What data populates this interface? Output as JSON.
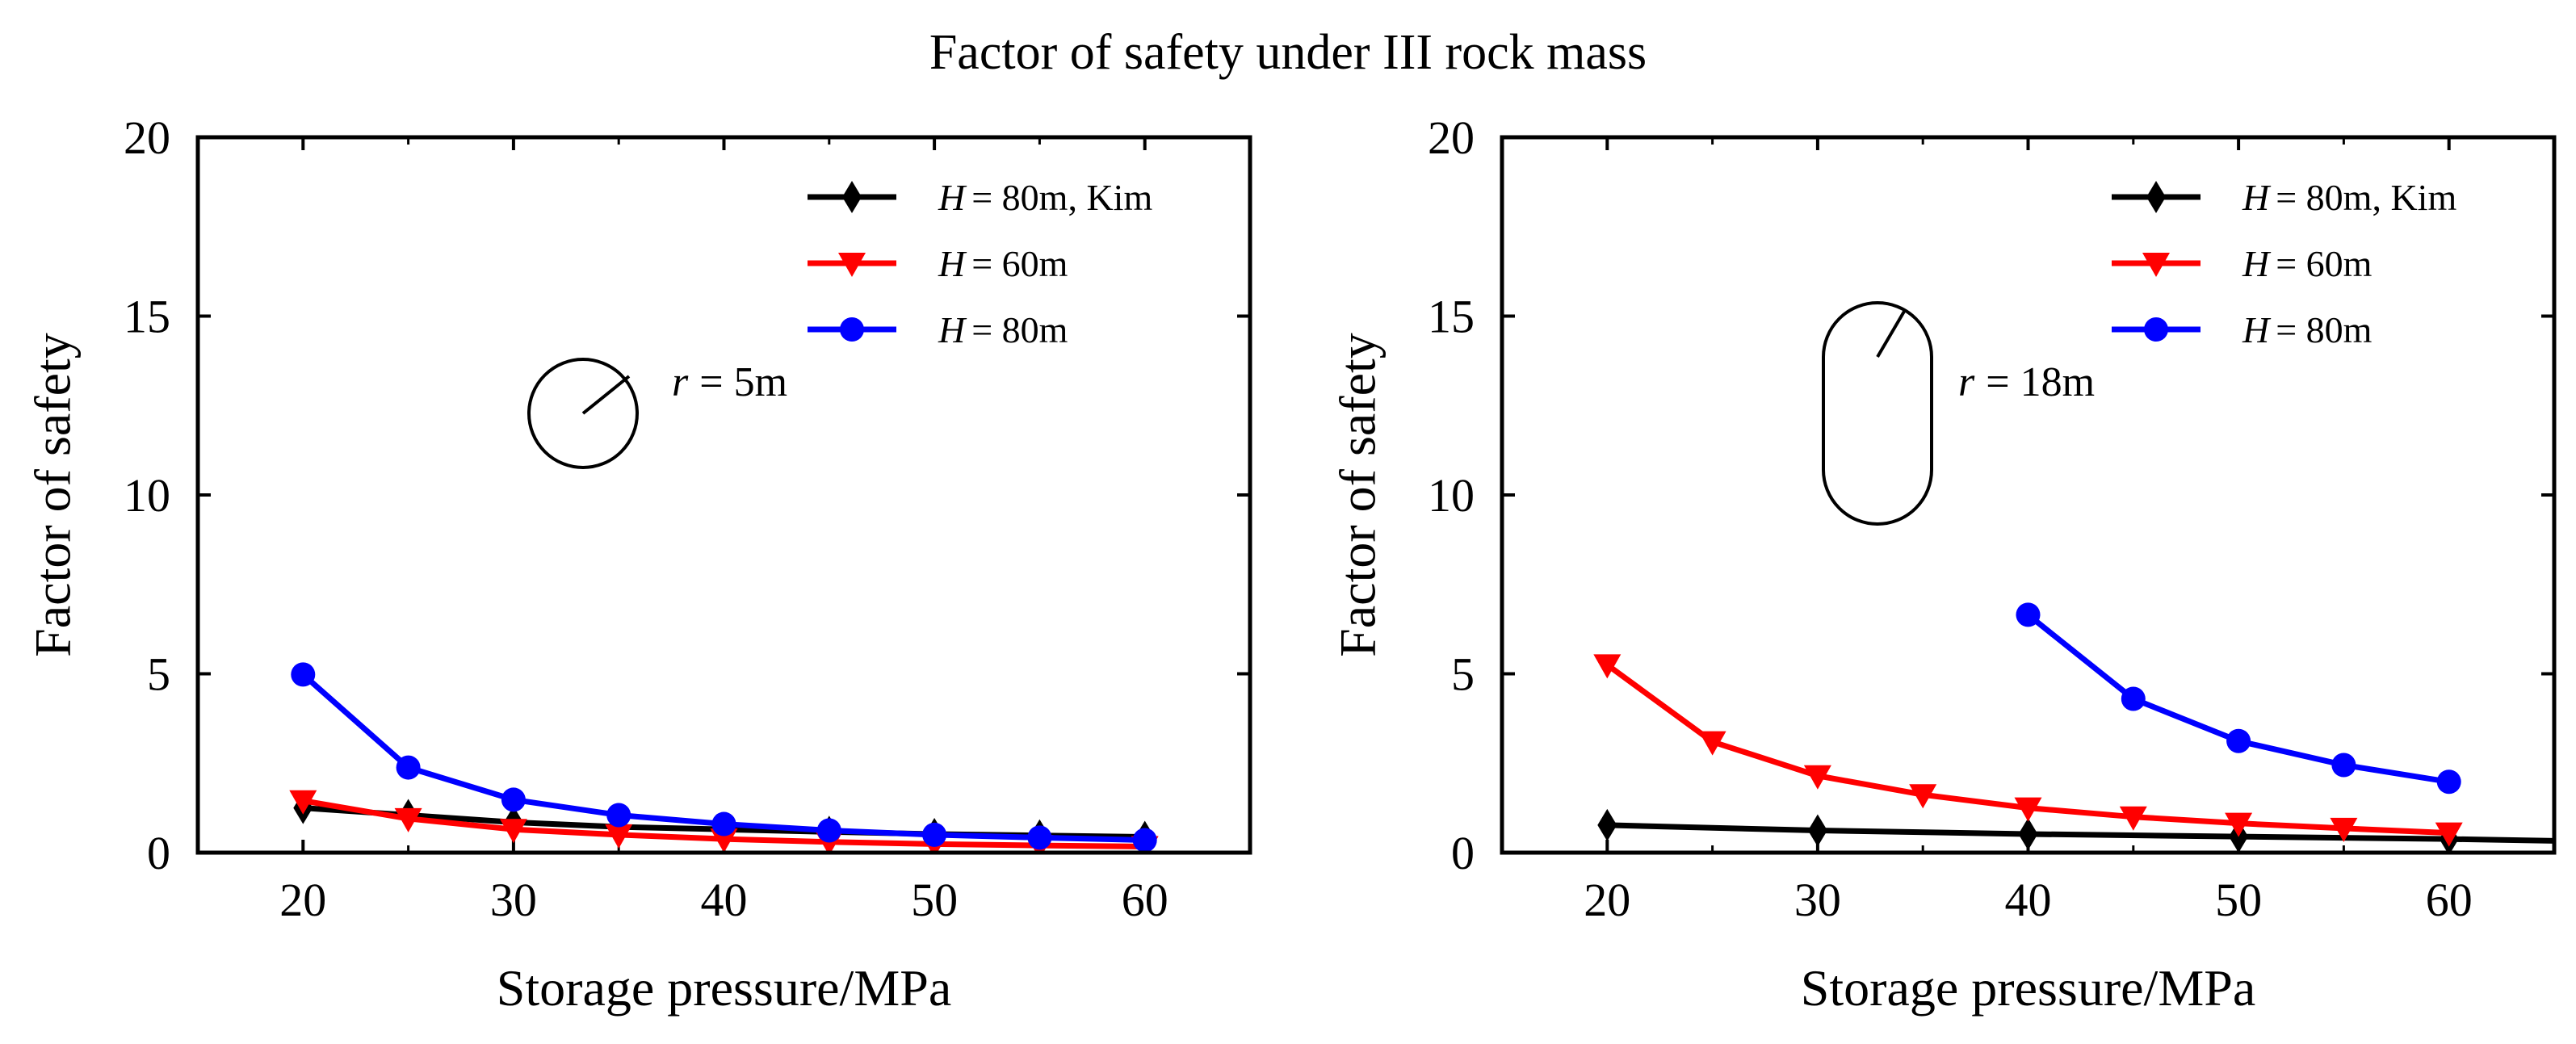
{
  "figure": {
    "title": "Factor of safety under III rock mass"
  },
  "chart_data": [
    {
      "type": "line",
      "xlabel": "Storage pressure/MPa",
      "ylabel": "Factor of safety",
      "xlim": [
        15,
        65
      ],
      "ylim": [
        0,
        20
      ],
      "xticks": [
        20,
        30,
        40,
        50,
        60
      ],
      "yticks": [
        0,
        5,
        10,
        15,
        20
      ],
      "legend_position": "top-right",
      "grid": false,
      "annotation": {
        "shape": "circle",
        "symbol": "r",
        "text": "= 5m"
      },
      "series": [
        {
          "name_symbol": "H",
          "name_rest": "= 80m, Kim",
          "color": "#000000",
          "marker": "diamond",
          "x": [
            20,
            25,
            30,
            35,
            40,
            45,
            50,
            55,
            60
          ],
          "y": [
            1.25,
            1.05,
            0.85,
            0.72,
            0.65,
            0.58,
            0.52,
            0.48,
            0.44
          ]
        },
        {
          "name_symbol": "H",
          "name_rest": "= 60m",
          "color": "#ff0000",
          "marker": "triangle-down",
          "x": [
            20,
            25,
            30,
            35,
            40,
            45,
            50,
            55,
            60
          ],
          "y": [
            1.45,
            0.95,
            0.65,
            0.5,
            0.38,
            0.3,
            0.24,
            0.2,
            0.17
          ]
        },
        {
          "name_symbol": "H",
          "name_rest": "= 80m",
          "color": "#0000ff",
          "marker": "circle",
          "x": [
            20,
            25,
            30,
            35,
            40,
            45,
            50,
            55,
            60
          ],
          "y": [
            4.98,
            2.38,
            1.48,
            1.05,
            0.8,
            0.62,
            0.5,
            0.42,
            0.35
          ]
        }
      ]
    },
    {
      "type": "line",
      "xlabel": "Storage pressure/MPa",
      "ylabel": "Factor of safety",
      "xlim": [
        15,
        65
      ],
      "ylim": [
        0,
        20
      ],
      "xticks": [
        20,
        30,
        40,
        50,
        60
      ],
      "yticks": [
        0,
        5,
        10,
        15,
        20
      ],
      "legend_position": "top-right",
      "grid": false,
      "annotation": {
        "shape": "capsule",
        "symbol": "r",
        "text": "= 18m"
      },
      "series": [
        {
          "name_symbol": "H",
          "name_rest": "= 80m, Kim",
          "color": "#000000",
          "marker": "diamond",
          "line_extends_to_x": 65,
          "line_end_y": 0.33,
          "x": [
            20,
            30,
            40,
            50,
            60
          ],
          "y": [
            0.77,
            0.62,
            0.52,
            0.45,
            0.38
          ]
        },
        {
          "name_symbol": "H",
          "name_rest": "= 60m",
          "color": "#ff0000",
          "marker": "triangle-down",
          "x": [
            20,
            25,
            30,
            35,
            40,
            45,
            50,
            55,
            60
          ],
          "y": [
            5.25,
            3.1,
            2.15,
            1.62,
            1.25,
            1.0,
            0.82,
            0.68,
            0.55
          ]
        },
        {
          "name_symbol": "H",
          "name_rest": "= 80m",
          "color": "#0000ff",
          "marker": "circle",
          "x": [
            40,
            45,
            50,
            55,
            60
          ],
          "y": [
            6.65,
            4.3,
            3.12,
            2.45,
            1.98
          ]
        }
      ]
    }
  ]
}
